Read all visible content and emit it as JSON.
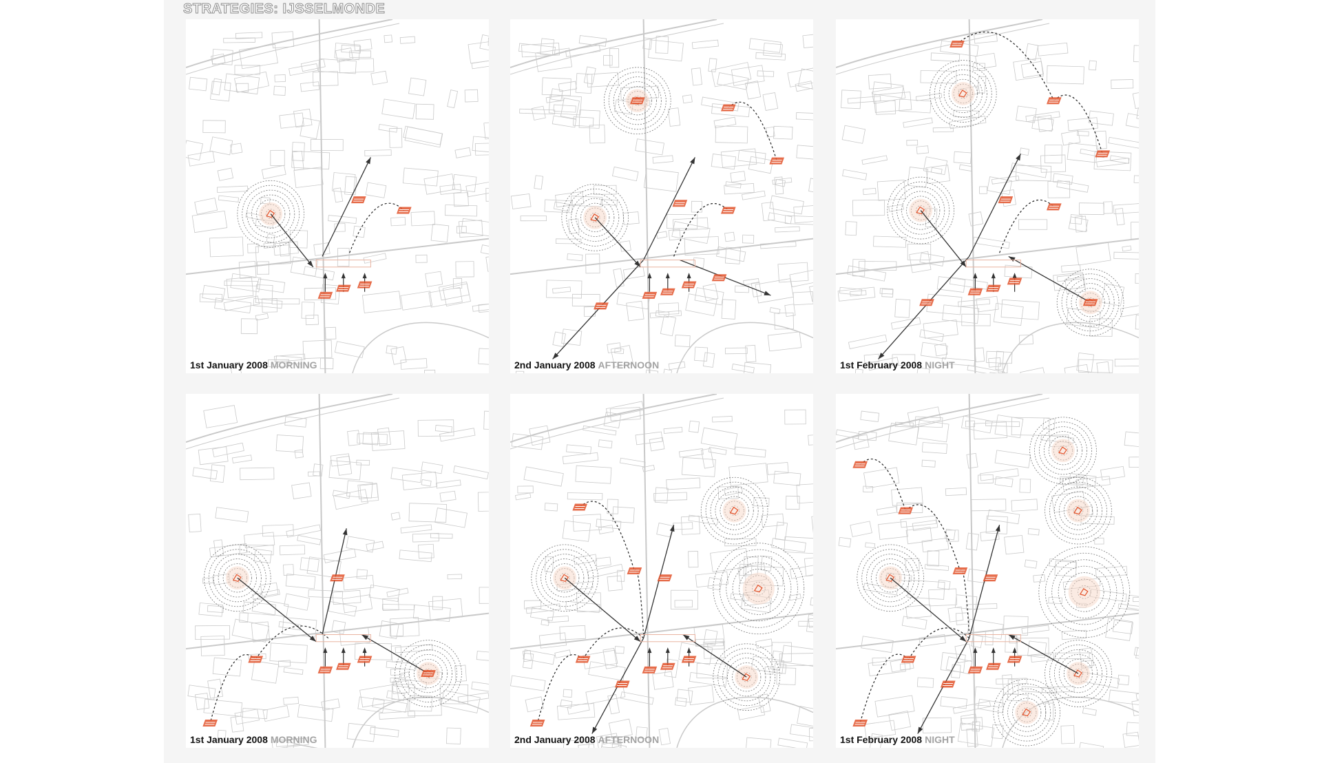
{
  "title": "STRATEGIES: IJSSELMONDE",
  "colors": {
    "accent": "#e2522a",
    "map_line": "#c9c9c9",
    "arrow": "#333333",
    "sheet": "#f5f5f5"
  },
  "panels": [
    {
      "date": "1st January 2008",
      "time": "MORNING",
      "rings": [
        [
          0.28,
          0.55,
          0.22
        ]
      ],
      "markers": [
        [
          0.57,
          0.51
        ],
        [
          0.72,
          0.54
        ],
        [
          0.46,
          0.78
        ],
        [
          0.52,
          0.76
        ],
        [
          0.59,
          0.75
        ]
      ],
      "arrows": [
        [
          0.45,
          0.67,
          0.61,
          0.39
        ],
        [
          0.28,
          0.55,
          0.42,
          0.7
        ]
      ],
      "curves": [
        [
          0.54,
          0.66,
          0.72,
          0.54
        ]
      ]
    },
    {
      "date": "2nd January 2008",
      "time": "AFTERNOON",
      "rings": [
        [
          0.42,
          0.23,
          0.22
        ],
        [
          0.28,
          0.56,
          0.22
        ]
      ],
      "markers": [
        [
          0.42,
          0.23
        ],
        [
          0.72,
          0.25
        ],
        [
          0.88,
          0.4
        ],
        [
          0.56,
          0.52
        ],
        [
          0.72,
          0.54
        ],
        [
          0.69,
          0.73
        ],
        [
          0.3,
          0.81
        ],
        [
          0.46,
          0.78
        ],
        [
          0.52,
          0.77
        ],
        [
          0.59,
          0.75
        ]
      ],
      "arrows": [
        [
          0.44,
          0.68,
          0.61,
          0.39
        ],
        [
          0.44,
          0.68,
          0.14,
          0.96
        ],
        [
          0.56,
          0.68,
          0.86,
          0.78
        ],
        [
          0.28,
          0.56,
          0.43,
          0.7
        ]
      ],
      "curves": [
        [
          0.54,
          0.67,
          0.72,
          0.54
        ],
        [
          0.72,
          0.25,
          0.88,
          0.4
        ]
      ]
    },
    {
      "date": "1st February 2008",
      "time": "NIGHT",
      "rings": [
        [
          0.42,
          0.21,
          0.22
        ],
        [
          0.28,
          0.54,
          0.22
        ],
        [
          0.84,
          0.8,
          0.22
        ]
      ],
      "markers": [
        [
          0.4,
          0.07
        ],
        [
          0.72,
          0.23
        ],
        [
          0.88,
          0.38
        ],
        [
          0.56,
          0.51
        ],
        [
          0.72,
          0.53
        ],
        [
          0.3,
          0.8
        ],
        [
          0.46,
          0.77
        ],
        [
          0.52,
          0.76
        ],
        [
          0.59,
          0.74
        ],
        [
          0.84,
          0.8
        ]
      ],
      "arrows": [
        [
          0.44,
          0.67,
          0.61,
          0.38
        ],
        [
          0.44,
          0.67,
          0.14,
          0.96
        ],
        [
          0.28,
          0.54,
          0.43,
          0.7
        ],
        [
          0.84,
          0.8,
          0.57,
          0.67
        ]
      ],
      "curves": [
        [
          0.4,
          0.07,
          0.72,
          0.23
        ],
        [
          0.72,
          0.23,
          0.88,
          0.38
        ],
        [
          0.54,
          0.66,
          0.72,
          0.53
        ]
      ]
    },
    {
      "date": "1st January 2008",
      "time": "MORNING",
      "rings": [
        [
          0.17,
          0.52,
          0.22
        ],
        [
          0.8,
          0.79,
          0.22
        ]
      ],
      "markers": [
        [
          0.5,
          0.52
        ],
        [
          0.23,
          0.75
        ],
        [
          0.08,
          0.93
        ],
        [
          0.46,
          0.78
        ],
        [
          0.52,
          0.77
        ],
        [
          0.59,
          0.75
        ],
        [
          0.8,
          0.79
        ]
      ],
      "arrows": [
        [
          0.45,
          0.68,
          0.53,
          0.38
        ],
        [
          0.17,
          0.52,
          0.43,
          0.7
        ],
        [
          0.8,
          0.79,
          0.58,
          0.68
        ]
      ],
      "curves": [
        [
          0.47,
          0.69,
          0.23,
          0.75
        ],
        [
          0.23,
          0.75,
          0.08,
          0.93
        ]
      ]
    },
    {
      "date": "2nd January 2008",
      "time": "AFTERNOON",
      "rings": [
        [
          0.18,
          0.52,
          0.22
        ],
        [
          0.74,
          0.33,
          0.22
        ],
        [
          0.82,
          0.55,
          0.3
        ],
        [
          0.78,
          0.8,
          0.22
        ]
      ],
      "markers": [
        [
          0.23,
          0.32
        ],
        [
          0.41,
          0.5
        ],
        [
          0.51,
          0.52
        ],
        [
          0.24,
          0.75
        ],
        [
          0.09,
          0.93
        ],
        [
          0.37,
          0.82
        ],
        [
          0.46,
          0.78
        ],
        [
          0.52,
          0.77
        ],
        [
          0.59,
          0.75
        ]
      ],
      "arrows": [
        [
          0.44,
          0.69,
          0.54,
          0.37
        ],
        [
          0.44,
          0.69,
          0.27,
          0.96
        ],
        [
          0.18,
          0.52,
          0.43,
          0.7
        ],
        [
          0.78,
          0.8,
          0.57,
          0.68
        ]
      ],
      "curves": [
        [
          0.23,
          0.32,
          0.41,
          0.5
        ],
        [
          0.41,
          0.5,
          0.44,
          0.68
        ],
        [
          0.44,
          0.69,
          0.24,
          0.75
        ],
        [
          0.24,
          0.75,
          0.09,
          0.93
        ]
      ]
    },
    {
      "date": "1st February 2008",
      "time": "NIGHT",
      "rings": [
        [
          0.18,
          0.52,
          0.22
        ],
        [
          0.75,
          0.16,
          0.22
        ],
        [
          0.8,
          0.33,
          0.22
        ],
        [
          0.82,
          0.56,
          0.3
        ],
        [
          0.8,
          0.79,
          0.22
        ],
        [
          0.63,
          0.9,
          0.22
        ]
      ],
      "markers": [
        [
          0.08,
          0.2
        ],
        [
          0.23,
          0.33
        ],
        [
          0.41,
          0.5
        ],
        [
          0.51,
          0.52
        ],
        [
          0.24,
          0.75
        ],
        [
          0.08,
          0.93
        ],
        [
          0.37,
          0.82
        ],
        [
          0.46,
          0.78
        ],
        [
          0.52,
          0.77
        ],
        [
          0.59,
          0.75
        ]
      ],
      "arrows": [
        [
          0.44,
          0.69,
          0.54,
          0.37
        ],
        [
          0.44,
          0.69,
          0.27,
          0.96
        ],
        [
          0.18,
          0.52,
          0.43,
          0.7
        ],
        [
          0.8,
          0.79,
          0.57,
          0.68
        ]
      ],
      "curves": [
        [
          0.08,
          0.2,
          0.23,
          0.33
        ],
        [
          0.23,
          0.33,
          0.41,
          0.5
        ],
        [
          0.41,
          0.5,
          0.44,
          0.68
        ],
        [
          0.44,
          0.69,
          0.24,
          0.75
        ],
        [
          0.24,
          0.75,
          0.08,
          0.93
        ]
      ]
    }
  ]
}
